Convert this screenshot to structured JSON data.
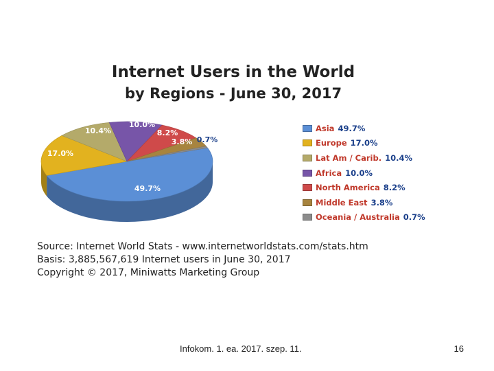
{
  "slide": {
    "footer": "Infokom. 1. ea. 2017. szep. 11.",
    "page_number": "16"
  },
  "chart_data": {
    "type": "pie",
    "title": "Internet Users in the World",
    "subtitle": "by Regions - June 30, 2017",
    "categories": [
      "Asia",
      "Europe",
      "Lat Am / Carib.",
      "Africa",
      "North America",
      "Middle East",
      "Oceania / Australia"
    ],
    "values": [
      49.7,
      17.0,
      10.4,
      10.0,
      8.2,
      3.8,
      0.7
    ],
    "value_labels": [
      "49.7%",
      "17.0%",
      "10.4%",
      "10.0%",
      "8.2%",
      "3.8%",
      "0.7%"
    ],
    "legend_values": [
      "49.7%",
      "17.0%",
      "10.4%",
      "10.0%",
      "8.2%",
      "3.8%",
      "0.7%"
    ],
    "colors": [
      "#5b8fd6",
      "#e2b21f",
      "#b4aa6a",
      "#7755a8",
      "#cf4a4a",
      "#a7843f",
      "#8c8c8c"
    ],
    "legend_position": "right",
    "source_lines": [
      "Source: Internet World Stats -  www.internetworldstats.com/stats.htm",
      "Basis: 3,885,567,619 Internet users in June 30, 2017",
      "Copyright © 2017, Miniwatts Marketing Group"
    ]
  }
}
